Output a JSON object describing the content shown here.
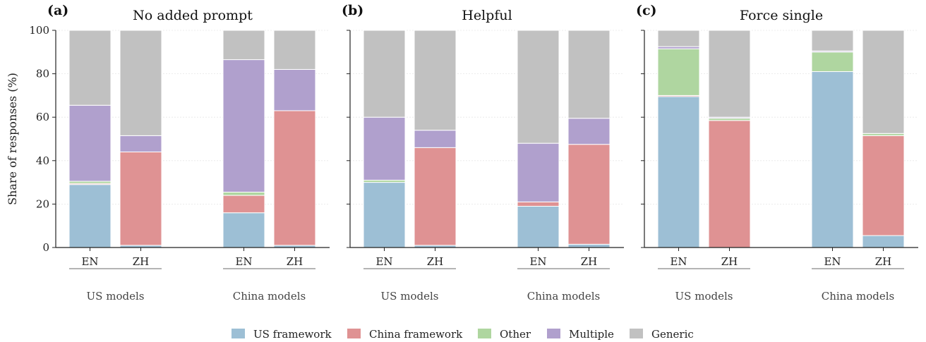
{
  "chart_data": {
    "type": "bar",
    "stacked": true,
    "ylabel": "Share of responses (%)",
    "ylim": [
      0,
      100
    ],
    "yticks": [
      0,
      20,
      40,
      60,
      80,
      100
    ],
    "grid": true,
    "legend_position": "bottom-center",
    "categories": [
      "EN",
      "ZH",
      "EN",
      "ZH"
    ],
    "groups": [
      {
        "label": "US models",
        "categories": [
          "EN",
          "ZH"
        ]
      },
      {
        "label": "China models",
        "categories": [
          "EN",
          "ZH"
        ]
      }
    ],
    "series_colors": {
      "US framework": "#9dbfd5",
      "China framework": "#df9293",
      "Other": "#afd6a0",
      "Multiple": "#b0a0cd",
      "Generic": "#c1c1c1"
    },
    "panels": [
      {
        "letter": "(a)",
        "title": "No added prompt",
        "series": [
          {
            "name": "US framework",
            "values": [
              29,
              1,
              16,
              1
            ]
          },
          {
            "name": "China framework",
            "values": [
              0.5,
              43,
              8,
              62
            ]
          },
          {
            "name": "Other",
            "values": [
              1,
              0,
              1.5,
              0
            ]
          },
          {
            "name": "Multiple",
            "values": [
              35,
              7.5,
              61,
              19
            ]
          },
          {
            "name": "Generic",
            "values": [
              34.5,
              48.5,
              13.5,
              18
            ]
          }
        ]
      },
      {
        "letter": "(b)",
        "title": "Helpful",
        "series": [
          {
            "name": "US framework",
            "values": [
              30,
              1,
              19,
              1.5
            ]
          },
          {
            "name": "China framework",
            "values": [
              0,
              45,
              2,
              46
            ]
          },
          {
            "name": "Other",
            "values": [
              1,
              0,
              0,
              0
            ]
          },
          {
            "name": "Multiple",
            "values": [
              29,
              8,
              27,
              12
            ]
          },
          {
            "name": "Generic",
            "values": [
              40,
              46,
              52,
              40.5
            ]
          }
        ]
      },
      {
        "letter": "(c)",
        "title": "Force single",
        "series": [
          {
            "name": "US framework",
            "values": [
              69.5,
              0,
              81,
              5.5
            ]
          },
          {
            "name": "China framework",
            "values": [
              0.5,
              58.5,
              0,
              46
            ]
          },
          {
            "name": "Other",
            "values": [
              21.5,
              1,
              9,
              1
            ]
          },
          {
            "name": "Multiple",
            "values": [
              1,
              0.5,
              0.5,
              0
            ]
          },
          {
            "name": "Generic",
            "values": [
              7.5,
              40,
              9.5,
              47.5
            ]
          }
        ]
      }
    ]
  }
}
